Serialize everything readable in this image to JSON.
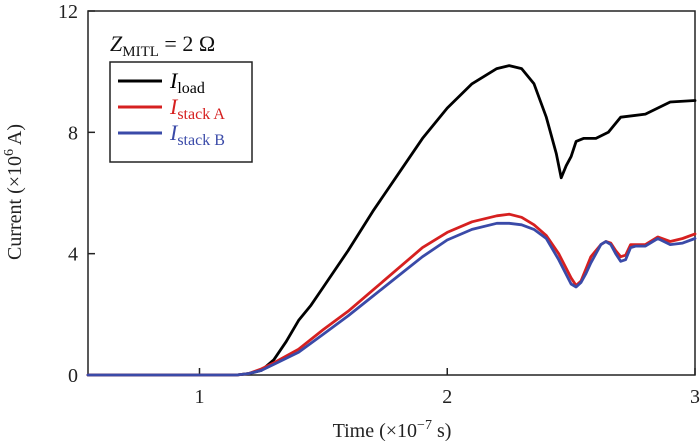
{
  "chart_data": {
    "type": "line",
    "xlabel_main": "Time (×10",
    "xlabel_exp": "−7",
    "xlabel_unit": " s)",
    "ylabel_main": "Current (×10",
    "ylabel_exp": "6",
    "ylabel_unit": " A)",
    "xlim": [
      0.55,
      3.0
    ],
    "ylim": [
      0,
      12
    ],
    "xticks": [
      {
        "value": 1,
        "label": "1"
      },
      {
        "value": 2,
        "label": "2"
      },
      {
        "value": 3,
        "label": "3"
      }
    ],
    "yticks": [
      {
        "value": 0,
        "label": "0"
      },
      {
        "value": 4,
        "label": "4"
      },
      {
        "value": 8,
        "label": "8"
      },
      {
        "value": 12,
        "label": "12"
      }
    ],
    "annotation": {
      "symbol": "Z",
      "subscript": "MITL",
      "rest": " = 2 Ω"
    },
    "legend_position": "top-left",
    "series": [
      {
        "name": "I",
        "subscript": "load",
        "color": "#000000",
        "x": [
          0.55,
          1.0,
          1.15,
          1.2,
          1.25,
          1.3,
          1.35,
          1.4,
          1.45,
          1.5,
          1.6,
          1.7,
          1.8,
          1.9,
          2.0,
          2.1,
          2.2,
          2.25,
          2.3,
          2.35,
          2.4,
          2.44,
          2.46,
          2.48,
          2.5,
          2.52,
          2.55,
          2.6,
          2.65,
          2.7,
          2.8,
          2.9,
          3.0
        ],
        "y": [
          0.0,
          0.0,
          0.0,
          0.05,
          0.15,
          0.5,
          1.1,
          1.8,
          2.3,
          2.9,
          4.1,
          5.4,
          6.6,
          7.8,
          8.8,
          9.6,
          10.1,
          10.2,
          10.1,
          9.6,
          8.5,
          7.3,
          6.5,
          6.9,
          7.2,
          7.7,
          7.8,
          7.8,
          8.0,
          8.5,
          8.6,
          9.0,
          9.05
        ]
      },
      {
        "name": "I",
        "subscript": "stack A",
        "color": "#d62020",
        "x": [
          0.55,
          1.0,
          1.15,
          1.2,
          1.25,
          1.3,
          1.4,
          1.5,
          1.6,
          1.7,
          1.8,
          1.9,
          2.0,
          2.1,
          2.2,
          2.25,
          2.3,
          2.35,
          2.4,
          2.45,
          2.5,
          2.52,
          2.54,
          2.56,
          2.58,
          2.6,
          2.62,
          2.64,
          2.66,
          2.68,
          2.7,
          2.72,
          2.74,
          2.76,
          2.8,
          2.85,
          2.9,
          2.95,
          3.0
        ],
        "y": [
          0.0,
          0.0,
          0.0,
          0.05,
          0.2,
          0.4,
          0.85,
          1.5,
          2.1,
          2.8,
          3.5,
          4.2,
          4.7,
          5.05,
          5.25,
          5.3,
          5.2,
          4.95,
          4.6,
          4.0,
          3.2,
          2.95,
          3.1,
          3.5,
          3.9,
          4.1,
          4.3,
          4.4,
          4.35,
          4.1,
          3.9,
          3.95,
          4.3,
          4.3,
          4.3,
          4.55,
          4.4,
          4.5,
          4.65
        ]
      },
      {
        "name": "I",
        "subscript": "stack B",
        "color": "#3a4aa8",
        "x": [
          0.55,
          1.0,
          1.15,
          1.2,
          1.25,
          1.3,
          1.4,
          1.5,
          1.6,
          1.7,
          1.8,
          1.9,
          2.0,
          2.1,
          2.2,
          2.25,
          2.3,
          2.35,
          2.4,
          2.45,
          2.5,
          2.52,
          2.54,
          2.56,
          2.58,
          2.6,
          2.62,
          2.64,
          2.66,
          2.68,
          2.7,
          2.72,
          2.74,
          2.76,
          2.8,
          2.85,
          2.9,
          2.95,
          3.0
        ],
        "y": [
          0.0,
          0.0,
          0.0,
          0.05,
          0.15,
          0.35,
          0.75,
          1.35,
          1.95,
          2.6,
          3.25,
          3.9,
          4.45,
          4.8,
          5.0,
          5.0,
          4.95,
          4.8,
          4.5,
          3.8,
          3.0,
          2.9,
          3.05,
          3.35,
          3.7,
          4.0,
          4.3,
          4.4,
          4.3,
          4.0,
          3.75,
          3.8,
          4.2,
          4.25,
          4.25,
          4.5,
          4.3,
          4.35,
          4.5
        ]
      }
    ]
  }
}
